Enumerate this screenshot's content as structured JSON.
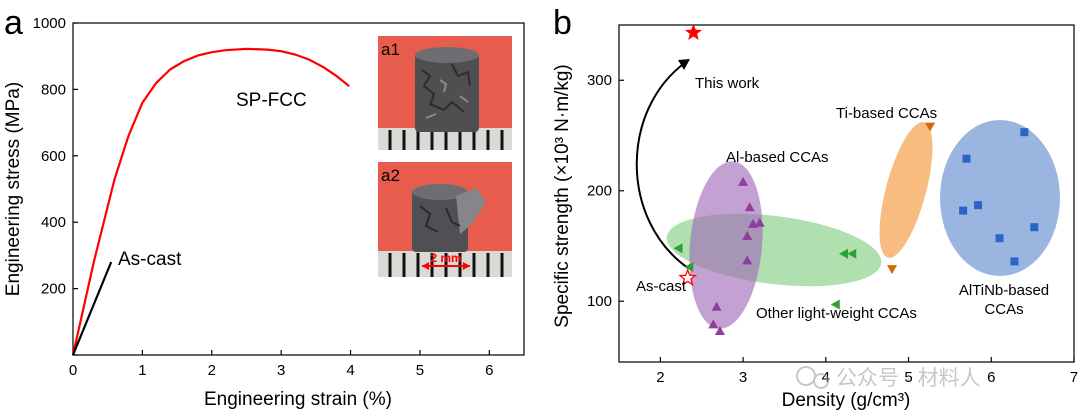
{
  "watermark": "公众号 · 材料人",
  "chart_data": [
    {
      "panel_label": "a",
      "type": "line",
      "xlabel": "Engineering strain (%)",
      "ylabel": "Engineering stress (MPa)",
      "xlim": [
        0,
        6.5
      ],
      "ylim": [
        0,
        1000
      ],
      "xticks": [
        0,
        1,
        2,
        3,
        4,
        5,
        6
      ],
      "yticks": [
        0,
        200,
        400,
        600,
        800,
        1000
      ],
      "grid": false,
      "series": [
        {
          "name": "SP-FCC",
          "color": "#ff0000",
          "x": [
            0,
            0.3,
            0.6,
            0.8,
            1.0,
            1.2,
            1.4,
            1.6,
            1.8,
            2.0,
            2.2,
            2.5,
            2.8,
            3.0,
            3.2,
            3.4,
            3.6,
            3.8,
            3.98
          ],
          "y": [
            0,
            280,
            530,
            660,
            760,
            820,
            860,
            885,
            902,
            912,
            918,
            922,
            920,
            915,
            905,
            890,
            868,
            840,
            810
          ]
        },
        {
          "name": "As-cast",
          "color": "#000000",
          "x": [
            0,
            0.55
          ],
          "y": [
            0,
            280
          ]
        }
      ],
      "insets": [
        {
          "label": "a1"
        },
        {
          "label": "a2",
          "scale_bar": "2 mm"
        }
      ]
    },
    {
      "panel_label": "b",
      "type": "scatter",
      "xlabel": "Density (g/cm³)",
      "ylabel": "Specific strength (×10³ N·m/kg)",
      "xlim": [
        1.5,
        7
      ],
      "ylim": [
        45,
        350
      ],
      "xticks": [
        2,
        3,
        4,
        5,
        6,
        7
      ],
      "yticks": [
        100,
        200,
        300
      ],
      "grid": false,
      "groups": [
        {
          "label": "Al-based CCAs",
          "color": "#8e3f9c",
          "marker": "triangle-up",
          "points": [
            [
              2.64,
              79
            ],
            [
              2.72,
              73
            ],
            [
              2.68,
              95
            ],
            [
              3.0,
              208
            ],
            [
              3.08,
              185
            ],
            [
              3.05,
              159
            ],
            [
              3.05,
              137
            ],
            [
              3.12,
              170
            ],
            [
              3.2,
              171
            ]
          ]
        },
        {
          "label": "Other light-weight CCAs",
          "color": "#2ea22e",
          "marker": "triangle-left",
          "points": [
            [
              2.22,
              148
            ],
            [
              2.35,
              131
            ],
            [
              4.22,
              143
            ],
            [
              4.32,
              143
            ],
            [
              4.12,
              97
            ]
          ]
        },
        {
          "label": "Ti-based CCAs",
          "color": "#d16a0a",
          "marker": "triangle-down",
          "points": [
            [
              5.26,
              258
            ],
            [
              4.8,
              129
            ]
          ]
        },
        {
          "label": "AlTiNb-based CCAs",
          "color": "#2a64c6",
          "marker": "square",
          "points": [
            [
              6.4,
              253
            ],
            [
              5.7,
              229
            ],
            [
              5.84,
              187
            ],
            [
              5.66,
              182
            ],
            [
              6.52,
              167
            ],
            [
              6.1,
              157
            ],
            [
              6.28,
              136
            ]
          ]
        },
        {
          "label": "This work",
          "color": "#ff0000",
          "marker": "star-filled",
          "points": [
            [
              2.4,
              343
            ]
          ]
        },
        {
          "label": "As-cast",
          "color": "#ff0000",
          "marker": "star-open",
          "points": [
            [
              2.33,
              121
            ]
          ]
        }
      ]
    }
  ]
}
